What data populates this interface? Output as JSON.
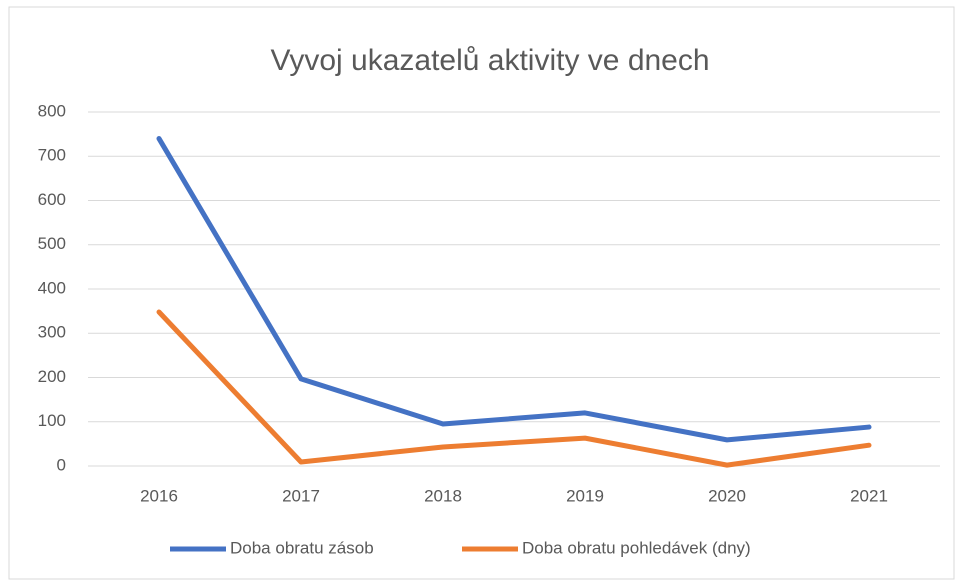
{
  "chart_data": {
    "type": "line",
    "title": "Vyvoj ukazatelů aktivity ve dnech",
    "categories": [
      "2016",
      "2017",
      "2018",
      "2019",
      "2020",
      "2021"
    ],
    "series": [
      {
        "name": "Doba obratu zásob",
        "color": "#4472c4",
        "values": [
          740,
          197,
          95,
          120,
          59,
          88
        ]
      },
      {
        "name": "Doba obratu pohledávek (dny)",
        "color": "#ed7d31",
        "values": [
          348,
          9,
          43,
          63,
          2,
          47
        ]
      }
    ],
    "ylim": [
      0,
      800
    ],
    "yticks": [
      0,
      100,
      200,
      300,
      400,
      500,
      600,
      700,
      800
    ],
    "grid": true,
    "legend": "bottom"
  }
}
